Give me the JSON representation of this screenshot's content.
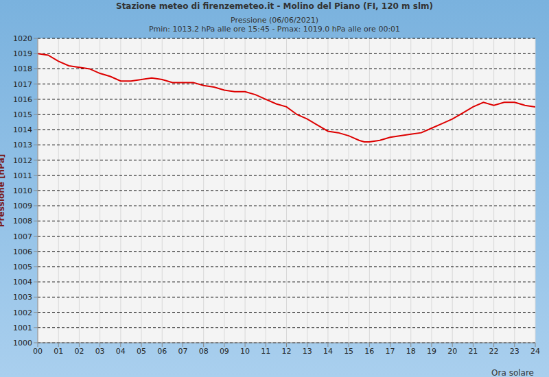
{
  "chart_data": {
    "type": "line",
    "title": "Stazione meteo di firenzemeteo.it - Molino del Piano (FI, 120 m slm)",
    "subtitle": [
      "Pressione (06/06/2021)",
      "Pmin: 1013.2 hPa alle ore 15:45 - Pmax: 1019.0 hPa alle ore 00:01"
    ],
    "x_label": "Ora solare",
    "y_label": "Pressione [hPa]",
    "x": [
      0,
      0.5,
      1,
      1.5,
      2,
      2.5,
      3,
      3.5,
      4,
      4.5,
      5,
      5.5,
      6,
      6.5,
      7,
      7.5,
      8,
      8.5,
      9,
      9.5,
      10,
      10.5,
      11,
      11.5,
      12,
      12.5,
      13,
      13.5,
      14,
      14.5,
      15,
      15.5,
      15.75,
      16,
      16.5,
      17,
      17.5,
      18,
      18.5,
      19,
      19.5,
      20,
      20.5,
      21,
      21.5,
      22,
      22.5,
      23,
      23.5,
      24
    ],
    "values": [
      1019.0,
      1018.9,
      1018.5,
      1018.2,
      1018.1,
      1018.0,
      1017.7,
      1017.5,
      1017.2,
      1017.2,
      1017.3,
      1017.4,
      1017.3,
      1017.1,
      1017.1,
      1017.1,
      1016.9,
      1016.8,
      1016.6,
      1016.5,
      1016.5,
      1016.3,
      1016.0,
      1015.7,
      1015.5,
      1015.0,
      1014.7,
      1014.3,
      1013.9,
      1013.8,
      1013.6,
      1013.3,
      1013.2,
      1013.2,
      1013.3,
      1013.5,
      1013.6,
      1013.7,
      1013.8,
      1014.1,
      1014.4,
      1014.7,
      1015.1,
      1015.5,
      1015.8,
      1015.6,
      1015.8,
      1015.8,
      1015.6,
      1015.5
    ],
    "color": "#dd0000",
    "xlim": [
      0,
      24
    ],
    "xticks": [
      {
        "value": 0,
        "label": "00"
      },
      {
        "value": 1,
        "label": "01"
      },
      {
        "value": 2,
        "label": "02"
      },
      {
        "value": 3,
        "label": "03"
      },
      {
        "value": 4,
        "label": "04"
      },
      {
        "value": 5,
        "label": "05"
      },
      {
        "value": 6,
        "label": "06"
      },
      {
        "value": 7,
        "label": "07"
      },
      {
        "value": 8,
        "label": "08"
      },
      {
        "value": 9,
        "label": "09"
      },
      {
        "value": 10,
        "label": "10"
      },
      {
        "value": 11,
        "label": "11"
      },
      {
        "value": 12,
        "label": "12"
      },
      {
        "value": 13,
        "label": "13"
      },
      {
        "value": 14,
        "label": "14"
      },
      {
        "value": 15,
        "label": "15"
      },
      {
        "value": 16,
        "label": "16"
      },
      {
        "value": 17,
        "label": "17"
      },
      {
        "value": 18,
        "label": "18"
      },
      {
        "value": 19,
        "label": "19"
      },
      {
        "value": 20,
        "label": "20"
      },
      {
        "value": 21,
        "label": "21"
      },
      {
        "value": 22,
        "label": "22"
      },
      {
        "value": 23,
        "label": "23"
      },
      {
        "value": 24,
        "label": "24"
      }
    ],
    "ylim": [
      1000,
      1020
    ],
    "yticks": [
      1000,
      1001,
      1002,
      1003,
      1004,
      1005,
      1006,
      1007,
      1008,
      1009,
      1010,
      1011,
      1012,
      1013,
      1014,
      1015,
      1016,
      1017,
      1018,
      1019,
      1020
    ],
    "grid": true
  }
}
